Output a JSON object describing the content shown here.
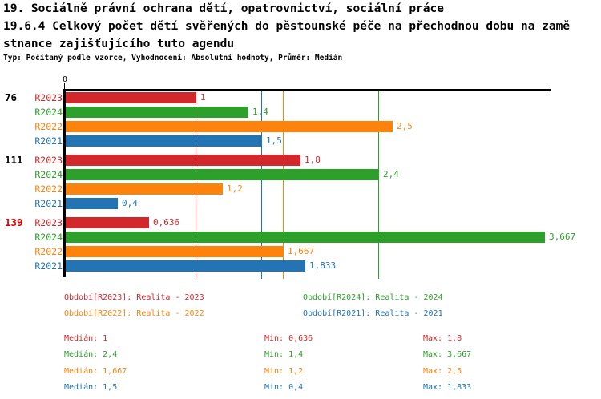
{
  "title": {
    "line1": "19. Sociálně právní ochrana dětí, opatrovnictví, sociální práce",
    "line2": "19.6.4 Celkový počet dětí svěřených do pěstounské péče na přechodnou dobu na zamě",
    "line3": "stnance zajišťujícího tuto agendu",
    "meta": "Typ: Počítaný podle vzorce, Vyhodnocení: Absolutní hodnoty, Průměr: Medián"
  },
  "colors": {
    "axis": "#000000",
    "alert_label": "#dd0000",
    "series": {
      "R2023": "#d2282c",
      "R2024": "#2da02c",
      "R2022": "#fd830d",
      "R2021": "#2274b5"
    }
  },
  "chart_data": {
    "type": "bar",
    "orientation": "horizontal",
    "origin_tick_label": "0",
    "axis": {
      "min": 0,
      "tick_labels": [
        "0"
      ]
    },
    "series": [
      "R2023",
      "R2024",
      "R2022",
      "R2021"
    ],
    "groups": [
      {
        "label": "76",
        "label_color": "#000000",
        "values": [
          1,
          1.4,
          2.5,
          1.5
        ],
        "displays": [
          "1",
          "1,4",
          "2,5",
          "1,5"
        ]
      },
      {
        "label": "111",
        "label_color": "#000000",
        "values": [
          1.8,
          2.4,
          1.2,
          0.4
        ],
        "displays": [
          "1,8",
          "2,4",
          "1,2",
          "0,4"
        ]
      },
      {
        "label": "139",
        "label_color": "#dd0000",
        "values": [
          0.636,
          3.667,
          1.667,
          1.833
        ],
        "displays": [
          "0,636",
          "3,667",
          "1,667",
          "1,833"
        ]
      }
    ],
    "median_lines": [
      {
        "series": "R2023",
        "value": 1
      },
      {
        "series": "R2024",
        "value": 2.4
      },
      {
        "series": "R2022",
        "value": 1.667
      },
      {
        "series": "R2021",
        "value": 1.5
      }
    ]
  },
  "legend": {
    "items": [
      {
        "text": "Období[R2023]: Realita - 2023",
        "series": "R2023",
        "row": 0,
        "col": 0
      },
      {
        "text": "Období[R2024]: Realita - 2024",
        "series": "R2024",
        "row": 0,
        "col": 1
      },
      {
        "text": "Období[R2022]: Realita - 2022",
        "series": "R2022",
        "row": 1,
        "col": 0
      },
      {
        "text": "Období[R2021]: Realita - 2021",
        "series": "R2021",
        "row": 1,
        "col": 1
      }
    ]
  },
  "stats": {
    "rows": [
      {
        "series": "R2023",
        "median": "Medián: 1",
        "min": "Min: 0,636",
        "max": "Max: 1,8"
      },
      {
        "series": "R2024",
        "median": "Medián: 2,4",
        "min": "Min: 1,4",
        "max": "Max: 3,667"
      },
      {
        "series": "R2022",
        "median": "Medián: 1,667",
        "min": "Min: 1,2",
        "max": "Max: 2,5"
      },
      {
        "series": "R2021",
        "median": "Medián: 1,5",
        "min": "Min: 0,4",
        "max": "Max: 1,833"
      }
    ]
  }
}
